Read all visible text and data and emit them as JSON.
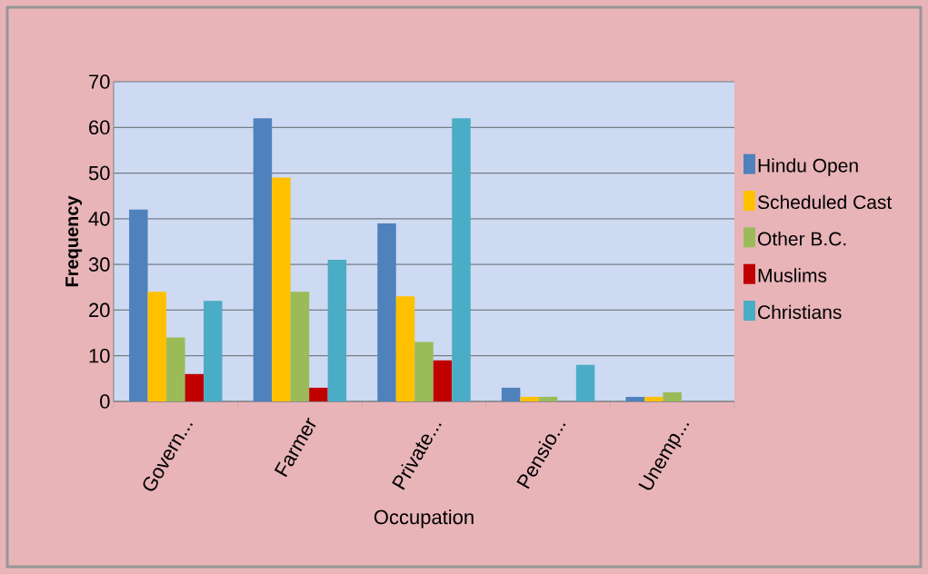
{
  "chart_data": {
    "type": "bar",
    "xlabel": "Occupation",
    "ylabel": "Frequency",
    "categories": [
      "Govern...",
      "Farmer",
      "Private...",
      "Pensio...",
      "Unemp..."
    ],
    "series": [
      {
        "name": "Hindu Open",
        "color": "#4f81bd",
        "values": [
          42,
          62,
          39,
          3,
          1
        ]
      },
      {
        "name": "Scheduled Cast",
        "color": "#ffc000",
        "values": [
          24,
          49,
          23,
          1,
          1
        ]
      },
      {
        "name": "Other B.C.",
        "color": "#9bbb59",
        "values": [
          14,
          24,
          13,
          1,
          2
        ]
      },
      {
        "name": "Muslims",
        "color": "#c00000",
        "values": [
          6,
          3,
          9,
          0,
          0
        ]
      },
      {
        "name": "Christians",
        "color": "#4bacc6",
        "values": [
          22,
          31,
          62,
          8,
          0
        ]
      }
    ],
    "ylim": [
      0,
      70
    ],
    "yticks": [
      0,
      10,
      20,
      30,
      40,
      50,
      60,
      70
    ],
    "grid": "y",
    "legend": "right"
  }
}
